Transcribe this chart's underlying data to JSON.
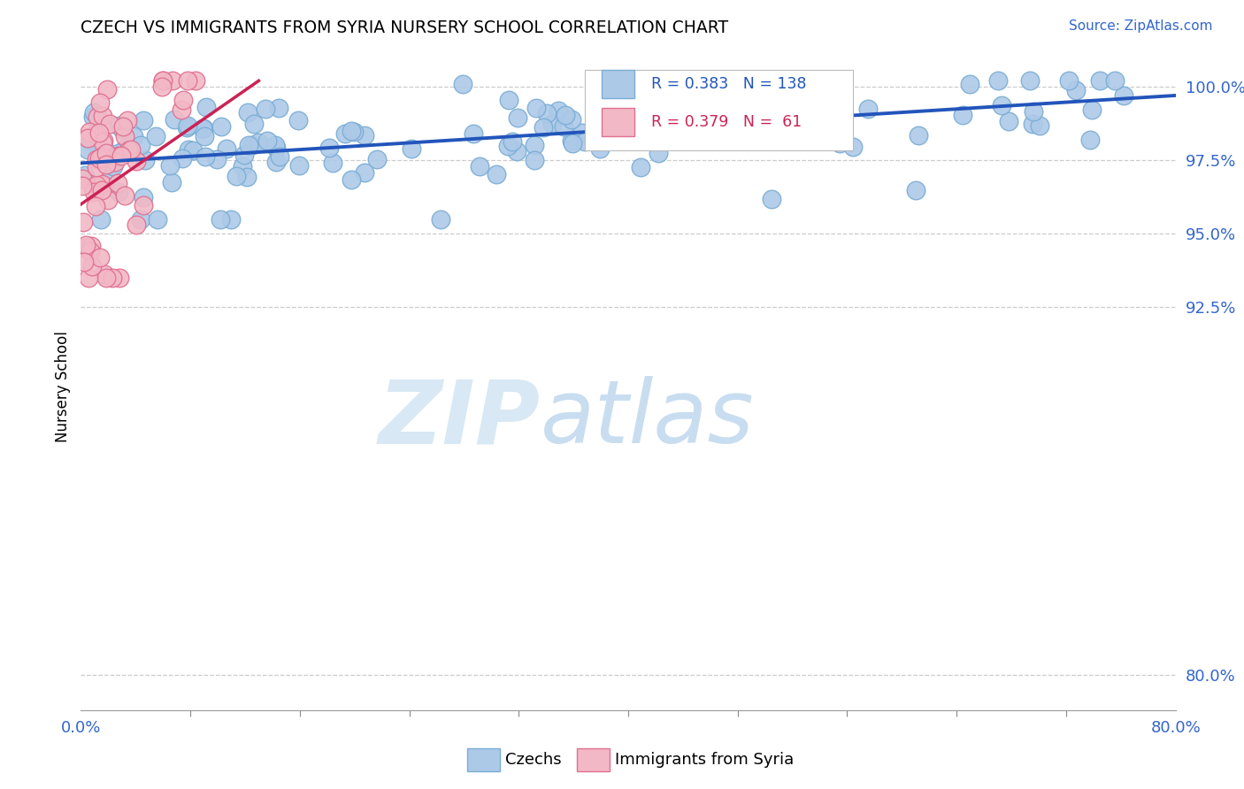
{
  "title": "CZECH VS IMMIGRANTS FROM SYRIA NURSERY SCHOOL CORRELATION CHART",
  "source_text": "Source: ZipAtlas.com",
  "ylabel": "Nursery School",
  "xlim": [
    0.0,
    0.8
  ],
  "ylim": [
    0.788,
    1.008
  ],
  "ytick_positions": [
    0.8,
    0.925,
    0.95,
    0.975,
    1.0
  ],
  "ytick_labels": [
    "80.0%",
    "92.5%",
    "95.0%",
    "97.5%",
    "100.0%"
  ],
  "czech_color": "#adc9e8",
  "czech_edge_color": "#7aadd4",
  "syria_color": "#f2b8c6",
  "syria_edge_color": "#e07090",
  "czech_R": 0.383,
  "czech_N": 138,
  "syria_R": 0.379,
  "syria_N": 61,
  "czech_line_color": "#2255bb",
  "syria_line_color": "#cc2255",
  "watermark_zip": "ZIP",
  "watermark_atlas": "atlas",
  "watermark_color": "#d8e8f4",
  "legend_R_color": "#2255bb",
  "legend_syria_color": "#cc2255"
}
